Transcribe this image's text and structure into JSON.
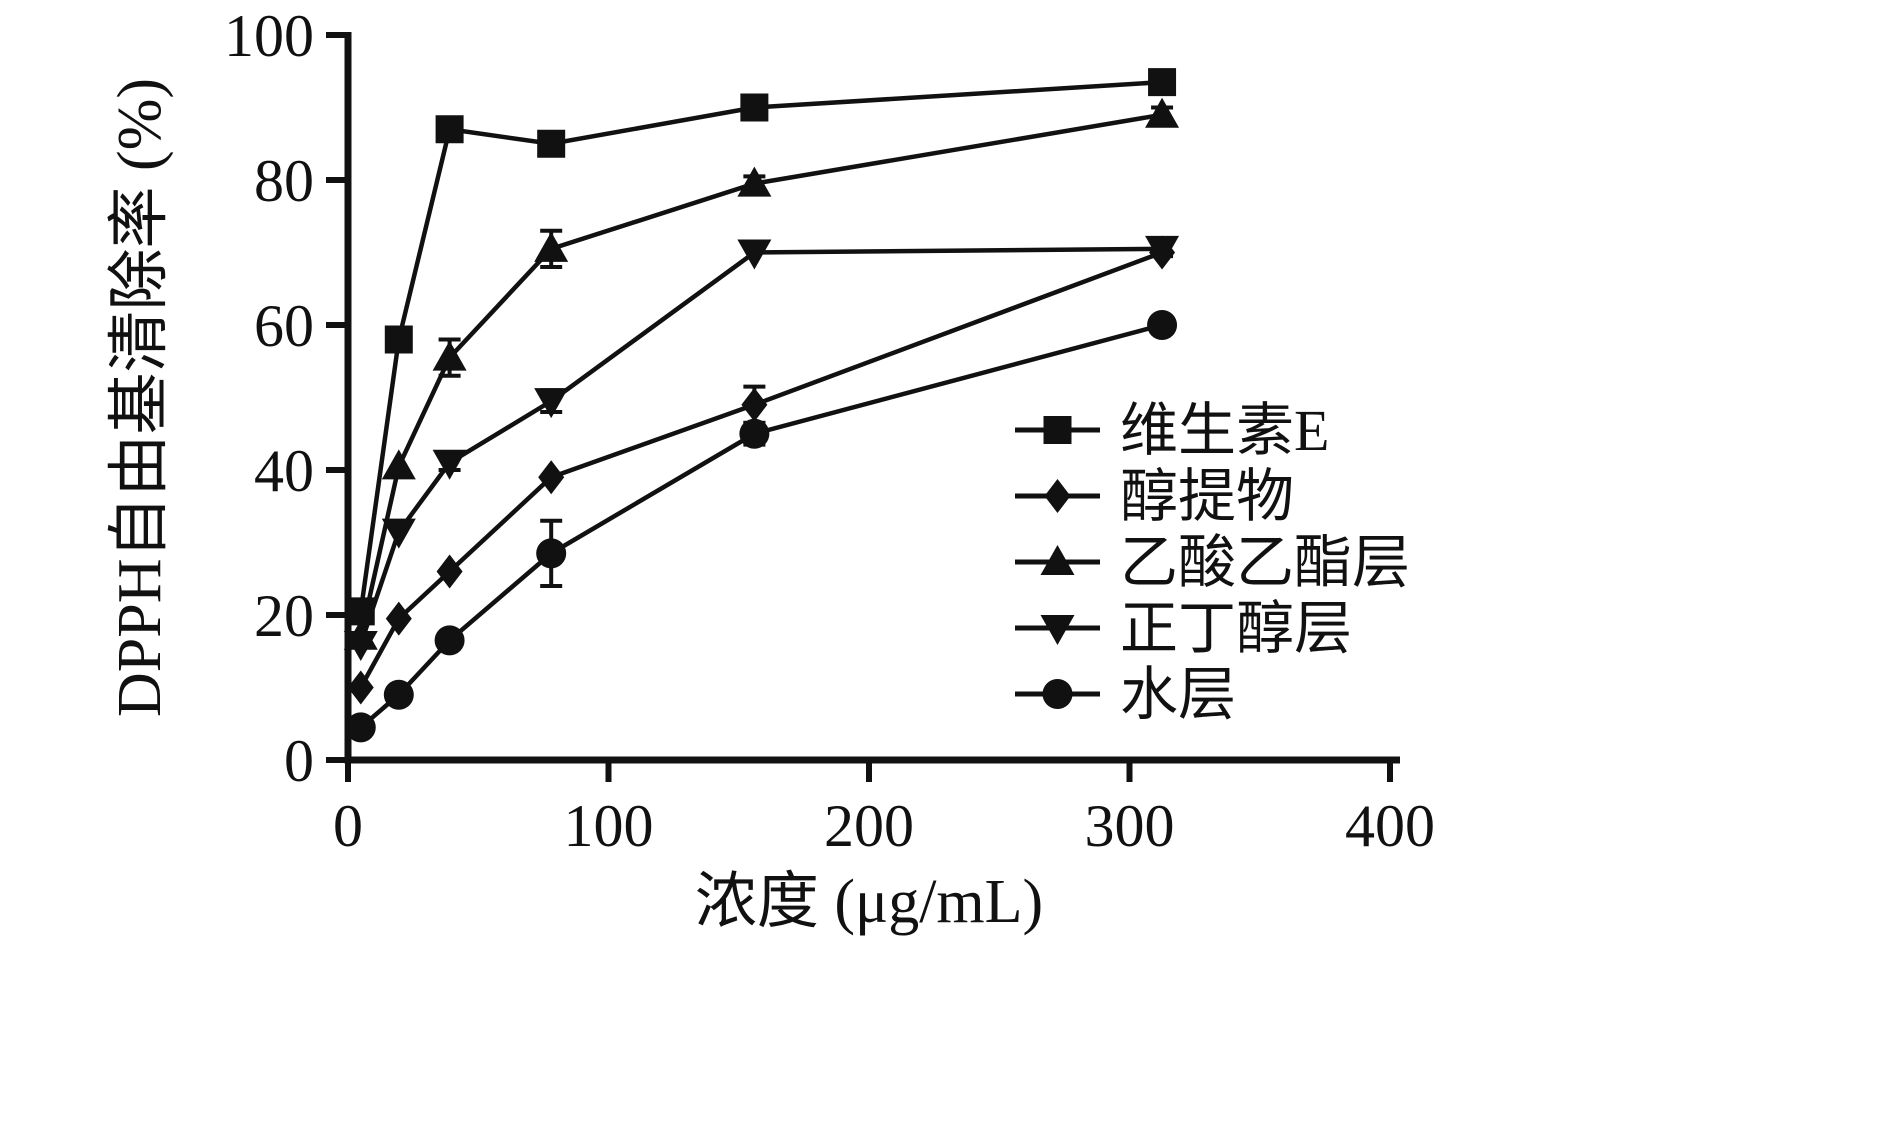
{
  "figure": {
    "background": "#ffffff",
    "ink": "#111111"
  },
  "chart_data": {
    "type": "line",
    "title": "",
    "xlabel": "浓度 (μg/mL)",
    "ylabel": "DPPH自由基清除率 (%)",
    "xlim": [
      0,
      400
    ],
    "ylim": [
      0,
      100
    ],
    "x_ticks": [
      0,
      100,
      200,
      300,
      400
    ],
    "y_ticks": [
      0,
      20,
      40,
      60,
      80,
      100
    ],
    "grid": false,
    "legend_position": "right-middle",
    "x": [
      4.9,
      19.5,
      39,
      78,
      156,
      312.5
    ],
    "series": [
      {
        "name": "维生素E",
        "marker": "square",
        "values": [
          20.5,
          58,
          87,
          85,
          90,
          93.5
        ],
        "errors": [
          1.5,
          1,
          1.5,
          1.5,
          1,
          1
        ]
      },
      {
        "name": "醇提物",
        "marker": "diamond",
        "values": [
          10,
          19.5,
          26,
          39,
          49,
          70
        ],
        "errors": [
          0,
          0,
          0,
          0,
          2.5,
          0
        ]
      },
      {
        "name": "乙酸乙酯层",
        "marker": "triangle-up",
        "values": [
          17,
          40.5,
          55.5,
          70.5,
          79.5,
          89
        ],
        "errors": [
          0,
          0,
          2.5,
          2.5,
          1,
          1
        ]
      },
      {
        "name": "正丁醇层",
        "marker": "triangle-down",
        "values": [
          16,
          31.5,
          41,
          49.5,
          70,
          70.5
        ],
        "errors": [
          0,
          0,
          1,
          1.5,
          0,
          1
        ]
      },
      {
        "name": "水层",
        "marker": "circle",
        "values": [
          4.5,
          9,
          16.5,
          28.5,
          45,
          60
        ],
        "errors": [
          0,
          0,
          0,
          4.5,
          1.5,
          0
        ]
      }
    ]
  }
}
